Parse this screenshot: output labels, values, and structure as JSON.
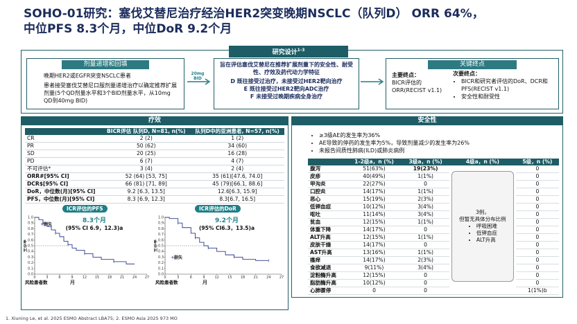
{
  "title": [
    "SOHO-01研究：塞伐艾替尼治疗经治HER2突变晚期NSCLC（队列D） ORR 64%，",
    "中位PFS 8.3个月，中位DoR 9.2个月"
  ],
  "design": {
    "header": "研究设计",
    "header_sup": "1-3",
    "left": {
      "title": "剂量递增和回填",
      "lines": [
        "晚期HER2或EGFR突变NSCLC患者",
        "患者接受塞伐艾替尼口服剂量递增治疗以确定推荐扩展剂量(5个QD剂量水平和3个BID剂量水平，从10mg QD到40mg BID)"
      ]
    },
    "arrow": [
      "20mg",
      "BID"
    ],
    "middle": {
      "intro": "旨在评估塞伐艾替尼在推荐扩展剂量下的安全性、耐受性、疗效及药代动力学特征",
      "cohorts": [
        "D 既往接受过治疗，未接受过HER2靶向治疗",
        "E 既往接受过HER2靶向ADC治疗",
        "F 未接受过晚期疾病全身治疗"
      ]
    },
    "right": {
      "title": "关键终点",
      "primary_label": "主要终点：",
      "primary": "BICR评估的ORR(RECIST v1.1)",
      "secondary_label": "次要终点：",
      "secondary": [
        "BICR和研究者评估的DoR、DCR和PFS(RECIST v1.1)",
        "安全性和耐受性"
      ]
    }
  },
  "efficacy": {
    "header": "疗效",
    "table": {
      "columns": [
        "BICR评估 队列D, N=81, n(%)",
        "队列D中的亚洲患者, N=57, n(%)"
      ],
      "rows": [
        [
          "CR",
          "2 (2)",
          "1 (2)"
        ],
        [
          "PR",
          "50 (62)",
          "34 (60)"
        ],
        [
          "SD",
          "20 (25)",
          "16 (28)"
        ],
        [
          "PD",
          "6 (7)",
          "4 (7)"
        ],
        [
          "不可评估*",
          "3 (4)",
          "2 (4)"
        ],
        [
          "ORR#[95% CI]",
          "52 (64) [53, 75]",
          "35 (61)[47.6, 74.0]"
        ],
        [
          "DCR$[95% CI]",
          "66 (81) [71, 89]",
          "45 (79)[66.1, 88.6]"
        ],
        [
          "DoR，中位数(月)[95% CI]",
          "9.2 [6.3, 13.5]",
          "12.6[6.3, 15.9]"
        ],
        [
          "PFS，中位数(月)[95% CI]",
          "8.3 [6.9, 12.3]",
          "8.3[6.7, 16.5]"
        ]
      ]
    },
    "km": [
      {
        "label": "ICR评估的PFS",
        "median": "8.3个月",
        "ci": "(95% CI 6.9，12.3)a",
        "censor": "删失",
        "ylabel": "生存率",
        "xlabel": "月",
        "risk": "风险患者数",
        "yticks": [
          "0.0",
          "0.1",
          "0.2",
          "0.3",
          "0.4",
          "0.5",
          "0.6",
          "0.7",
          "0.8",
          "0.9",
          "1.0"
        ],
        "xticks": [
          0,
          3,
          6,
          9,
          12,
          15,
          18,
          21,
          24,
          27
        ]
      },
      {
        "label": "ICR评估的DoR",
        "median": "9.2个月",
        "ci": "(95% CI6.3，13.5)a",
        "censor": "删失",
        "ylabel": "生存率",
        "xlabel": "月",
        "risk": "风险患者数",
        "yticks": [
          "0.0",
          "0.1",
          "0.2",
          "0.3",
          "0.4",
          "0.5",
          "0.6",
          "0.7",
          "0.8",
          "0.9",
          "1.0"
        ],
        "xticks": [
          0,
          3,
          6,
          9,
          12,
          15,
          18,
          21,
          24,
          27
        ]
      }
    ]
  },
  "safety": {
    "header": "安全性",
    "bullets": [
      "≥3级AE的发生率为36%",
      "AE导致的停药的发生率为5%，导致剂量减少的发生率为26%",
      "未报告间质性肺病(ILD)或肺炎病例"
    ],
    "columns": [
      "1-2级a，n (%)",
      "3级a，n (%)",
      "4级a，n (%)",
      "5级，n (%)"
    ],
    "rows": [
      [
        "腹泻",
        "51(63%)",
        "19(23%)",
        "0"
      ],
      [
        "皮疹",
        "40(49%)",
        "1(1%)",
        "0"
      ],
      [
        "甲沟炎",
        "22(27%)",
        "0",
        "0"
      ],
      [
        "口腔炎",
        "14(17%)",
        "1(1%)",
        "0"
      ],
      [
        "恶心",
        "15(19%)",
        "2(3%)",
        "0"
      ],
      [
        "低钾血症",
        "10(12%)",
        "3(4%)",
        "0"
      ],
      [
        "呕吐",
        "11(14%)",
        "3(4%)",
        "0"
      ],
      [
        "贫血",
        "12(15%)",
        "1(1%)",
        "0"
      ],
      [
        "体重下降",
        "14(17%)",
        "0",
        "0"
      ],
      [
        "ALT升高",
        "12(15%)",
        "1(1%)",
        "0"
      ],
      [
        "皮肤干燥",
        "14(17%)",
        "0",
        "0"
      ],
      [
        "AST升高",
        "13(16%)",
        "1(1%)",
        "0"
      ],
      [
        "瘙痒",
        "14(17%)",
        "2(3%)",
        "0"
      ],
      [
        "食欲减退",
        "9(11%)",
        "3(4%)",
        "0"
      ],
      [
        "淀粉酶升高",
        "12(15%)",
        "0",
        "0"
      ],
      [
        "脂肪酶升高",
        "10(12%)",
        "0",
        "0"
      ],
      [
        "心肺骤停",
        "0",
        "0",
        "1(1%)b"
      ]
    ],
    "grade4_note": {
      "lines": [
        "3例，",
        "但暂无具体分布比例"
      ],
      "items": [
        "呼吸困难",
        "低钾血症",
        "ALT升高"
      ]
    }
  },
  "reference": "1.    Xiuning Le, et al. 2025 ESMO Abstract LBA75; 2. ESMO Asia 2025 973 MO"
}
